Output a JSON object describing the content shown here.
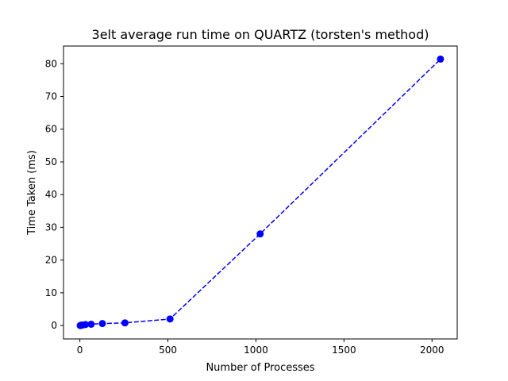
{
  "chart_data": {
    "type": "line",
    "title": "3elt average run time on QUARTZ (torsten's method)",
    "xlabel": "Number of Processes",
    "ylabel": "Time Taken (ms)",
    "xlim": [
      -93,
      2143
    ],
    "ylim": [
      -4.1,
      85.4
    ],
    "xticks": [
      0,
      500,
      1000,
      1500,
      2000
    ],
    "yticks": [
      0,
      10,
      20,
      30,
      40,
      50,
      60,
      70,
      80
    ],
    "grid": false,
    "legend": "none",
    "series": [
      {
        "color": "#0000ff",
        "line_style": "dashed",
        "marker": "circle",
        "x": [
          2,
          4,
          8,
          16,
          32,
          64,
          128,
          256,
          512,
          1024,
          2048
        ],
        "y": [
          0.0,
          0.05,
          0.1,
          0.15,
          0.3,
          0.4,
          0.6,
          0.8,
          2.0,
          28.0,
          81.4
        ]
      }
    ]
  }
}
